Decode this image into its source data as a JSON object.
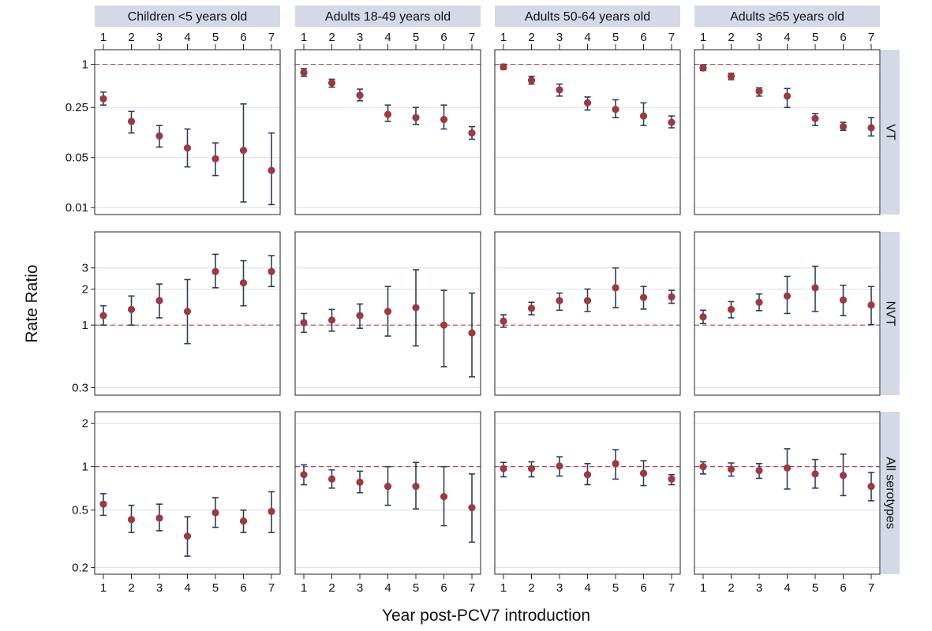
{
  "chart_data": {
    "type": "scatter",
    "subtype": "point-with-error-bars",
    "xlabel": "Year post-PCV7 introduction",
    "ylabel": "Rate Ratio",
    "x": [
      1,
      2,
      3,
      4,
      5,
      6,
      7
    ],
    "y_scale": "log",
    "reference_line": 1,
    "grid": true,
    "colors": {
      "point": "#9b3a40",
      "errorbar": "#2c3e5c",
      "reference": "#b5485e",
      "strip": "#d3d9e6",
      "grid": "#dddddd"
    },
    "columns": [
      "Children <5 years old",
      "Adults 18-49 years old",
      "Adults 50-64 years old",
      "Adults ≥65 years old"
    ],
    "rows": [
      {
        "label": "VT",
        "ylim": [
          0.008,
          1.6
        ],
        "yticks": [
          1,
          0.25,
          0.05,
          0.01
        ],
        "ytick_labels": [
          "1",
          "0.25",
          "0.05",
          "0.01"
        ],
        "panels": [
          {
            "y": [
              0.33,
              0.16,
              0.1,
              0.068,
              0.048,
              0.063,
              0.033
            ],
            "lo": [
              0.27,
              0.11,
              0.07,
              0.037,
              0.028,
              0.012,
              0.011
            ],
            "hi": [
              0.41,
              0.22,
              0.14,
              0.125,
              0.08,
              0.28,
              0.11
            ]
          },
          {
            "y": [
              0.77,
              0.55,
              0.37,
              0.2,
              0.18,
              0.17,
              0.11
            ],
            "lo": [
              0.68,
              0.48,
              0.31,
              0.16,
              0.145,
              0.125,
              0.09
            ],
            "hi": [
              0.87,
              0.62,
              0.45,
              0.27,
              0.25,
              0.27,
              0.135
            ]
          },
          {
            "y": [
              0.92,
              0.6,
              0.44,
              0.29,
              0.235,
              0.19,
              0.155
            ],
            "lo": [
              0.85,
              0.53,
              0.36,
              0.23,
              0.18,
              0.14,
              0.13
            ],
            "hi": [
              1.0,
              0.68,
              0.53,
              0.35,
              0.32,
              0.29,
              0.19
            ]
          },
          {
            "y": [
              0.89,
              0.68,
              0.42,
              0.36,
              0.175,
              0.135,
              0.13
            ],
            "lo": [
              0.82,
              0.61,
              0.36,
              0.25,
              0.14,
              0.12,
              0.1
            ],
            "hi": [
              0.98,
              0.75,
              0.47,
              0.46,
              0.205,
              0.155,
              0.18
            ]
          }
        ]
      },
      {
        "label": "NVT",
        "ylim": [
          0.26,
          6.0
        ],
        "yticks": [
          3,
          2,
          1,
          0.3
        ],
        "ytick_labels": [
          "3",
          "2",
          "1",
          "0.3"
        ],
        "panels": [
          {
            "y": [
              1.2,
              1.35,
              1.6,
              1.3,
              2.8,
              2.25,
              2.8
            ],
            "lo": [
              1.0,
              1.0,
              1.15,
              0.7,
              2.05,
              1.45,
              2.1
            ],
            "hi": [
              1.45,
              1.75,
              2.2,
              2.4,
              3.9,
              3.45,
              3.8
            ]
          },
          {
            "y": [
              1.05,
              1.1,
              1.2,
              1.3,
              1.4,
              1.0,
              0.86
            ],
            "lo": [
              0.87,
              0.89,
              0.94,
              0.81,
              0.67,
              0.45,
              0.37
            ],
            "hi": [
              1.25,
              1.35,
              1.5,
              2.1,
              2.9,
              1.95,
              1.85
            ]
          },
          {
            "y": [
              1.08,
              1.38,
              1.6,
              1.6,
              2.05,
              1.7,
              1.72
            ],
            "lo": [
              0.96,
              1.22,
              1.33,
              1.3,
              1.4,
              1.36,
              1.52
            ],
            "hi": [
              1.22,
              1.55,
              1.85,
              2.0,
              3.0,
              2.1,
              1.95
            ]
          },
          {
            "y": [
              1.17,
              1.35,
              1.55,
              1.75,
              2.05,
              1.62,
              1.47
            ],
            "lo": [
              1.03,
              1.15,
              1.32,
              1.25,
              1.3,
              1.2,
              1.01
            ],
            "hi": [
              1.33,
              1.57,
              1.82,
              2.55,
              3.1,
              2.15,
              2.1
            ]
          }
        ]
      },
      {
        "label": "All serotypes",
        "ylim": [
          0.18,
          2.4
        ],
        "yticks": [
          2,
          1,
          0.5,
          0.2
        ],
        "ytick_labels": [
          "2",
          "1",
          "0.5",
          "0.2"
        ],
        "panels": [
          {
            "y": [
              0.55,
              0.43,
              0.44,
              0.33,
              0.48,
              0.42,
              0.49
            ],
            "lo": [
              0.46,
              0.35,
              0.36,
              0.24,
              0.38,
              0.35,
              0.35
            ],
            "hi": [
              0.65,
              0.54,
              0.55,
              0.45,
              0.61,
              0.5,
              0.67
            ]
          },
          {
            "y": [
              0.88,
              0.82,
              0.78,
              0.73,
              0.73,
              0.62,
              0.52
            ],
            "lo": [
              0.75,
              0.71,
              0.66,
              0.54,
              0.51,
              0.39,
              0.3
            ],
            "hi": [
              1.03,
              0.95,
              0.93,
              1.0,
              1.07,
              1.0,
              0.89
            ]
          },
          {
            "y": [
              0.97,
              0.97,
              1.01,
              0.88,
              1.05,
              0.9,
              0.82
            ],
            "lo": [
              0.85,
              0.85,
              0.86,
              0.75,
              0.82,
              0.74,
              0.75
            ],
            "hi": [
              1.07,
              1.08,
              1.17,
              1.05,
              1.31,
              1.1,
              0.88
            ]
          },
          {
            "y": [
              1.0,
              0.96,
              0.94,
              0.98,
              0.89,
              0.87,
              0.73
            ],
            "lo": [
              0.89,
              0.86,
              0.83,
              0.7,
              0.71,
              0.63,
              0.58
            ],
            "hi": [
              1.08,
              1.06,
              1.05,
              1.33,
              1.12,
              1.22,
              0.91
            ]
          }
        ]
      }
    ]
  }
}
